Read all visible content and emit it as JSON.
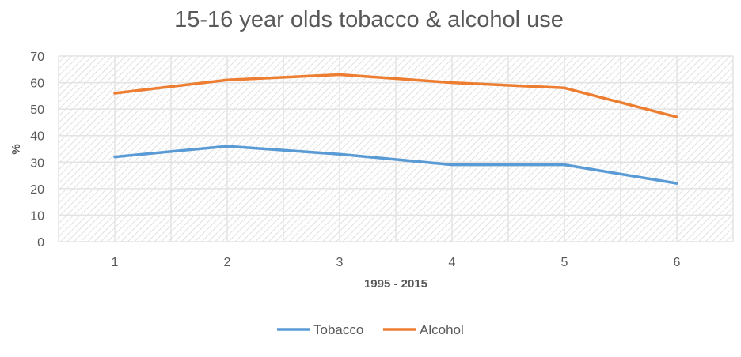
{
  "chart_data": {
    "type": "line",
    "title": "15-16 year olds tobacco & alcohol use",
    "xlabel": "1995 - 2015",
    "ylabel": "%",
    "categories": [
      "1",
      "2",
      "3",
      "4",
      "5",
      "6"
    ],
    "ylim": [
      0,
      70
    ],
    "yticks": [
      "0",
      "10",
      "20",
      "30",
      "40",
      "50",
      "60",
      "70"
    ],
    "grid": true,
    "legend_position": "bottom",
    "series": [
      {
        "name": "Tobacco",
        "color": "#5B9BD5",
        "values": [
          32,
          36,
          33,
          29,
          29,
          22
        ]
      },
      {
        "name": "Alcohol",
        "color": "#ED7D31",
        "values": [
          56,
          61,
          63,
          60,
          58,
          47
        ]
      }
    ]
  }
}
